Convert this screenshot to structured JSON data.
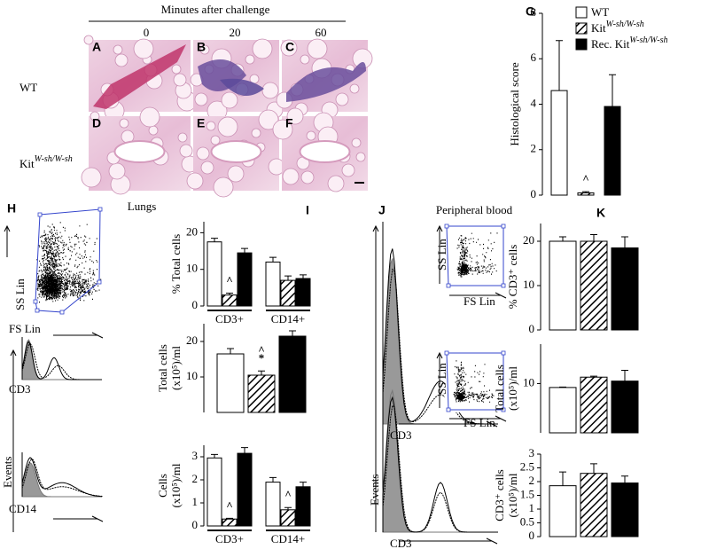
{
  "figure": {
    "header": "Minutes after challenge",
    "time_points": [
      "0",
      "20",
      "60"
    ],
    "row_labels": [
      {
        "text": "WT"
      },
      {
        "text": "Kit",
        "sup": "W-sh/W-sh"
      }
    ],
    "micrograph_labels": [
      "A",
      "B",
      "C",
      "D",
      "E",
      "F"
    ],
    "panel_letters": [
      "G",
      "H",
      "I",
      "J",
      "K"
    ],
    "section_titles": [
      "Lungs",
      "Peripheral blood"
    ],
    "flow_labels": [
      "SS Lin",
      "FS Lin",
      "CD3",
      "CD14",
      "Events",
      "CD3",
      "Events",
      "SS Lin",
      "FS Lin",
      "SS Lin",
      "FS Lin",
      "CD3"
    ]
  },
  "chart_data": [
    {
      "type": "bar",
      "ylabel": [
        "Histological score"
      ],
      "ylim": [
        0,
        8
      ],
      "yticks": [
        0,
        2,
        4,
        6,
        8
      ],
      "series": [
        {
          "name": "WT",
          "color": "#ffffff",
          "values": [
            4.6
          ],
          "errors": [
            2.2
          ]
        },
        {
          "name": "Kit",
          "name_sup": "W-sh/W-sh",
          "color": "hatch",
          "values": [
            0.1
          ],
          "errors": [
            0.05
          ]
        },
        {
          "name": "Rec. Kit",
          "name_sup": "W-sh/W-sh",
          "color": "#000000",
          "values": [
            3.9
          ],
          "errors": [
            1.4
          ]
        }
      ],
      "annotations": [
        {
          "text": "^",
          "series": 1,
          "group": 0
        }
      ]
    },
    {
      "type": "bar",
      "ylabel": [
        "% Total cells"
      ],
      "ylim": [
        0,
        23
      ],
      "yticks": [
        0,
        10,
        20
      ],
      "categories": [
        "CD3+",
        "CD14+"
      ],
      "series": [
        {
          "color": "#ffffff",
          "values": [
            17.5,
            12
          ],
          "errors": [
            1,
            1.3
          ]
        },
        {
          "color": "hatch",
          "values": [
            3,
            7
          ],
          "errors": [
            0.5,
            1.2
          ]
        },
        {
          "color": "#000000",
          "values": [
            14.5,
            7.5
          ],
          "errors": [
            1.2,
            1
          ]
        }
      ],
      "annotations": [
        {
          "text": "^",
          "series": 1,
          "group": 0
        }
      ]
    },
    {
      "type": "bar",
      "ylabel": [
        "Total cells",
        "(x10⁵)/ml"
      ],
      "ylim": [
        0,
        25
      ],
      "yticks": [
        10,
        20
      ],
      "series": [
        {
          "color": "#ffffff",
          "values": [
            16.5
          ],
          "errors": [
            1.5
          ]
        },
        {
          "color": "hatch",
          "values": [
            10.5
          ],
          "errors": [
            1.2
          ]
        },
        {
          "color": "#000000",
          "values": [
            21.5
          ],
          "errors": [
            1.5
          ]
        }
      ],
      "annotations": [
        {
          "text": "*",
          "series": 1,
          "group": 0
        },
        {
          "text": "^",
          "series": 1,
          "group": 0
        }
      ]
    },
    {
      "type": "bar",
      "ylabel": [
        "Cells",
        "(x10⁵)/ml"
      ],
      "ylim": [
        0,
        3.5
      ],
      "yticks": [
        0,
        1,
        2,
        3
      ],
      "categories": [
        "CD3+",
        "CD14+"
      ],
      "series": [
        {
          "color": "#ffffff",
          "values": [
            2.95,
            1.9
          ],
          "errors": [
            0.15,
            0.2
          ]
        },
        {
          "color": "hatch",
          "values": [
            0.3,
            0.7
          ],
          "errors": [
            0.03,
            0.1
          ]
        },
        {
          "color": "#000000",
          "values": [
            3.15,
            1.7
          ],
          "errors": [
            0.25,
            0.2
          ]
        }
      ],
      "annotations": [
        {
          "text": "^",
          "series": 1,
          "group": 0
        },
        {
          "text": "^",
          "series": 1,
          "group": 1
        }
      ]
    },
    {
      "type": "bar",
      "ylabel": [
        "% CD3⁺ cells"
      ],
      "ylim": [
        0,
        24
      ],
      "yticks": [
        0,
        10,
        20
      ],
      "series": [
        {
          "color": "#ffffff",
          "values": [
            20
          ],
          "errors": [
            1
          ]
        },
        {
          "color": "hatch",
          "values": [
            20
          ],
          "errors": [
            1.5
          ]
        },
        {
          "color": "#000000",
          "values": [
            18.5
          ],
          "errors": [
            2.5
          ]
        }
      ]
    },
    {
      "type": "bar",
      "ylabel": [
        "Total cells",
        "(x10⁵)/ml"
      ],
      "ylim": [
        0,
        18
      ],
      "yticks": [
        10
      ],
      "series": [
        {
          "color": "#ffffff",
          "values": [
            9.2
          ],
          "errors": [
            0.1
          ]
        },
        {
          "color": "hatch",
          "values": [
            11.3
          ],
          "errors": [
            0.2
          ]
        },
        {
          "color": "#000000",
          "values": [
            10.5
          ],
          "errors": [
            2.2
          ]
        }
      ]
    },
    {
      "type": "bar",
      "ylabel": [
        "CD3⁺ cells",
        "(x10⁵)/ml"
      ],
      "ylim": [
        0,
        3
      ],
      "yticks": [
        0,
        0.5,
        1,
        1.5,
        2,
        2.5,
        3
      ],
      "series": [
        {
          "color": "#ffffff",
          "values": [
            1.85
          ],
          "errors": [
            0.5
          ]
        },
        {
          "color": "hatch",
          "values": [
            2.3
          ],
          "errors": [
            0.35
          ]
        },
        {
          "color": "#000000",
          "values": [
            1.95
          ],
          "errors": [
            0.25
          ]
        }
      ]
    }
  ]
}
